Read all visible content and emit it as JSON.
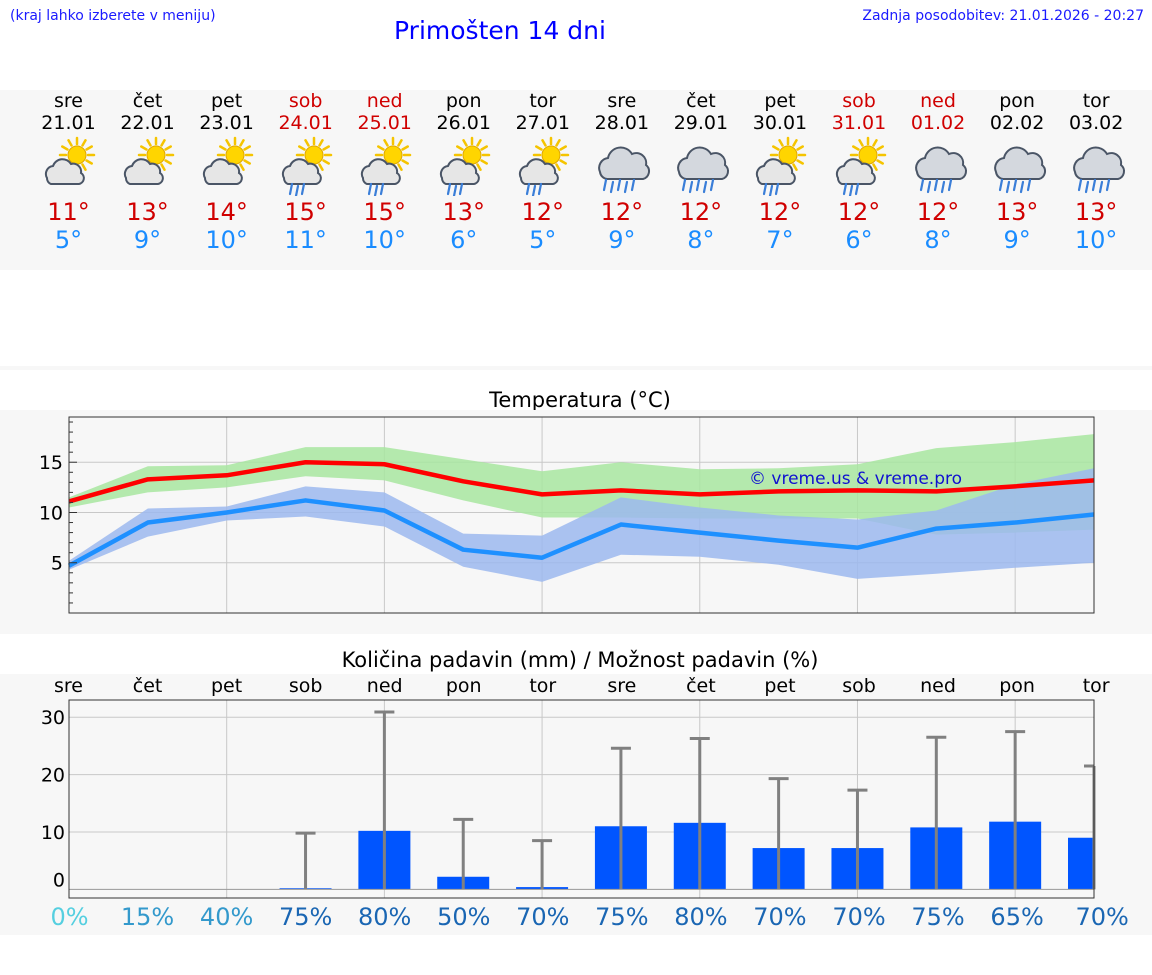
{
  "header": {
    "note": "(kraj lahko izberete v meniju)",
    "title": "Primošten 14 dni",
    "updated": "Zadnja posodobitev: 21.01.2026 - 20:27"
  },
  "days": [
    {
      "name": "sre",
      "date": "21.01",
      "weekend": false,
      "max": "11°",
      "min": "5°",
      "icon": "sun-cloud",
      "rain": false
    },
    {
      "name": "čet",
      "date": "22.01",
      "weekend": false,
      "max": "13°",
      "min": "9°",
      "icon": "sun-cloud",
      "rain": false
    },
    {
      "name": "pet",
      "date": "23.01",
      "weekend": false,
      "max": "14°",
      "min": "10°",
      "icon": "sun-cloud",
      "rain": false
    },
    {
      "name": "sob",
      "date": "24.01",
      "weekend": true,
      "max": "15°",
      "min": "11°",
      "icon": "sun-cloud-rain",
      "rain": true
    },
    {
      "name": "ned",
      "date": "25.01",
      "weekend": true,
      "max": "15°",
      "min": "10°",
      "icon": "sun-cloud-rain",
      "rain": true
    },
    {
      "name": "pon",
      "date": "26.01",
      "weekend": false,
      "max": "13°",
      "min": "6°",
      "icon": "sun-cloud-rain",
      "rain": true
    },
    {
      "name": "tor",
      "date": "27.01",
      "weekend": false,
      "max": "12°",
      "min": "5°",
      "icon": "sun-cloud-rain",
      "rain": true
    },
    {
      "name": "sre",
      "date": "28.01",
      "weekend": false,
      "max": "12°",
      "min": "9°",
      "icon": "cloud-rain",
      "rain": true
    },
    {
      "name": "čet",
      "date": "29.01",
      "weekend": false,
      "max": "12°",
      "min": "8°",
      "icon": "cloud-rain",
      "rain": true
    },
    {
      "name": "pet",
      "date": "30.01",
      "weekend": false,
      "max": "12°",
      "min": "7°",
      "icon": "sun-cloud-rain",
      "rain": true
    },
    {
      "name": "sob",
      "date": "31.01",
      "weekend": true,
      "max": "12°",
      "min": "6°",
      "icon": "sun-cloud-rain",
      "rain": true
    },
    {
      "name": "ned",
      "date": "01.02",
      "weekend": true,
      "max": "12°",
      "min": "8°",
      "icon": "cloud-rain",
      "rain": true
    },
    {
      "name": "pon",
      "date": "02.02",
      "weekend": false,
      "max": "13°",
      "min": "9°",
      "icon": "cloud-rain",
      "rain": true
    },
    {
      "name": "tor",
      "date": "03.02",
      "weekend": false,
      "max": "13°",
      "min": "10°",
      "icon": "cloud-rain",
      "rain": true
    }
  ],
  "colors": {
    "max": "#d00000",
    "min": "#1a8cff",
    "maxLine": "#ff0000",
    "minLine": "#1e90ff",
    "maxBand": "#a8e6a0",
    "minBand": "#9cb8ee",
    "bar": "#0055ff",
    "errBar": "#808080"
  },
  "chart_data": [
    {
      "type": "line",
      "title": "Temperatura (°C)",
      "watermark": "© vreme.us & vreme.pro",
      "ylim": [
        0,
        19.5
      ],
      "yticks": [
        5,
        10,
        15
      ],
      "x": [
        0,
        1,
        2,
        3,
        4,
        5,
        6,
        7,
        8,
        9,
        10,
        11,
        12,
        13
      ],
      "series": [
        {
          "name": "max",
          "values": [
            11.1,
            13.3,
            13.7,
            15.0,
            14.8,
            13.1,
            11.8,
            12.2,
            11.8,
            12.1,
            12.2,
            12.1,
            12.6,
            13.2
          ],
          "band_low": [
            10.5,
            12.0,
            12.5,
            13.6,
            13.2,
            11.2,
            9.5,
            9.5,
            9.4,
            9.4,
            9.4,
            7.8,
            8.0,
            8.3
          ],
          "band_high": [
            11.5,
            14.6,
            14.7,
            16.5,
            16.5,
            15.3,
            14.1,
            15.0,
            14.3,
            14.4,
            14.8,
            16.4,
            17.0,
            17.8
          ]
        },
        {
          "name": "min",
          "values": [
            4.7,
            9.0,
            10.0,
            11.2,
            10.2,
            6.3,
            5.5,
            8.8,
            8.0,
            7.2,
            6.5,
            8.4,
            9.0,
            9.8
          ],
          "band_low": [
            4.3,
            7.6,
            9.2,
            9.6,
            8.6,
            4.6,
            3.1,
            5.8,
            5.6,
            4.8,
            3.4,
            3.9,
            4.5,
            5.0
          ],
          "band_high": [
            5.2,
            10.4,
            10.6,
            12.6,
            12.0,
            7.9,
            7.7,
            11.5,
            10.5,
            9.7,
            9.3,
            10.2,
            12.8,
            14.4
          ]
        }
      ]
    },
    {
      "type": "bar",
      "title": "Količina padavin (mm) / Možnost padavin (%)",
      "categories": [
        "sre",
        "čet",
        "pet",
        "sob",
        "ned",
        "pon",
        "tor",
        "sre",
        "čet",
        "pet",
        "sob",
        "ned",
        "pon",
        "tor"
      ],
      "values": [
        0,
        0,
        0,
        0.2,
        10.2,
        2.2,
        0.4,
        11.0,
        11.6,
        7.2,
        7.2,
        10.8,
        11.8,
        9.0
      ],
      "error_high": [
        0,
        0,
        0,
        9.8,
        30.9,
        12.2,
        8.5,
        24.6,
        26.3,
        19.3,
        17.3,
        26.5,
        27.5,
        21.5
      ],
      "chance": [
        "0%",
        "15%",
        "40%",
        "75%",
        "80%",
        "50%",
        "70%",
        "75%",
        "80%",
        "70%",
        "70%",
        "75%",
        "65%",
        "70%"
      ],
      "chance_colors": [
        "#55cfe0",
        "#3399cc",
        "#3399cc",
        "#1a66b3",
        "#1a66b3",
        "#1a66b3",
        "#1a66b3",
        "#1a66b3",
        "#1a66b3",
        "#1a66b3",
        "#1a66b3",
        "#1a66b3",
        "#1a66b3",
        "#1a66b3"
      ],
      "ylim": [
        -1.5,
        33
      ],
      "yticks": [
        0,
        10,
        20,
        30
      ]
    }
  ]
}
